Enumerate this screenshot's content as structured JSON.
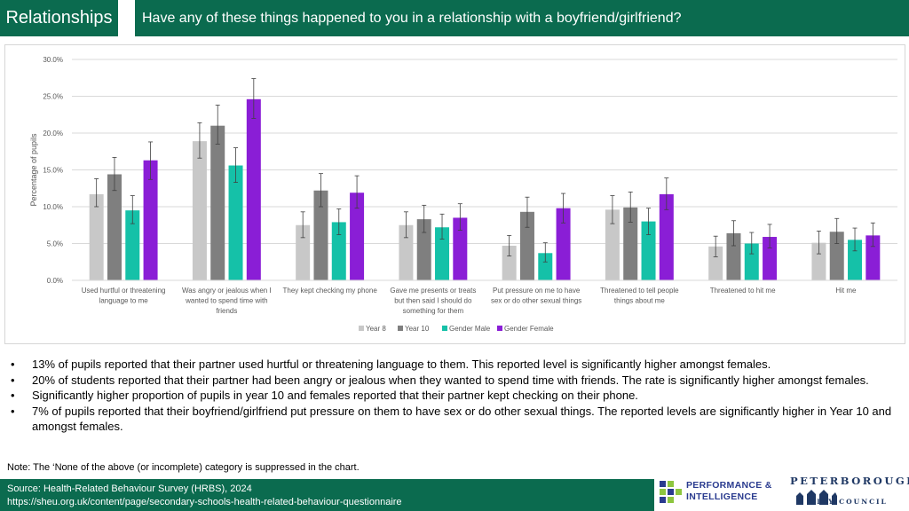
{
  "header": {
    "tag": "Relationships",
    "title": "Have any of these things happened to you in a relationship with a boyfriend/girlfriend?"
  },
  "colors": {
    "brand_green": "#0b6b4f",
    "year8": "#c8c8c8",
    "year10": "#7f7f7f",
    "male": "#15c1a8",
    "female": "#8a1ed6"
  },
  "chart_data": {
    "type": "bar",
    "ylabel": "Percentage of pupils",
    "ylim": [
      0,
      30
    ],
    "yticks": [
      "0.0%",
      "5.0%",
      "10.0%",
      "15.0%",
      "20.0%",
      "25.0%",
      "30.0%"
    ],
    "grid": true,
    "legend_position": "bottom",
    "error_bars": true,
    "categories": [
      [
        "Used hurtful or threatening",
        "language to me"
      ],
      [
        "Was angry or jealous when I",
        "wanted to spend time with",
        "friends"
      ],
      [
        "They kept checking my phone"
      ],
      [
        "Gave me presents or treats",
        "but then said I should do",
        "something for them"
      ],
      [
        "Put pressure on me to have",
        "sex or do other sexual things"
      ],
      [
        "Threatened to tell people",
        "things about me"
      ],
      [
        "Threatened to hit me"
      ],
      [
        "Hit me"
      ]
    ],
    "series": [
      {
        "name": "Year  8",
        "color": "#c8c8c8",
        "values": [
          11.7,
          18.9,
          7.5,
          7.5,
          4.7,
          9.6,
          4.6,
          5.1
        ],
        "err_low": [
          10.0,
          16.6,
          5.8,
          5.8,
          3.3,
          7.7,
          3.2,
          3.6
        ],
        "err_high": [
          13.8,
          21.4,
          9.3,
          9.3,
          6.1,
          11.5,
          6.0,
          6.7
        ]
      },
      {
        "name": "Year  10",
        "color": "#7f7f7f",
        "values": [
          14.4,
          21.0,
          12.2,
          8.3,
          9.3,
          9.9,
          6.4,
          6.6
        ],
        "err_low": [
          12.2,
          18.5,
          10.0,
          6.5,
          7.2,
          7.9,
          4.7,
          5.0
        ],
        "err_high": [
          16.7,
          23.8,
          14.5,
          10.2,
          11.3,
          12.0,
          8.1,
          8.4
        ]
      },
      {
        "name": "Gender Male",
        "color": "#15c1a8",
        "values": [
          9.5,
          15.6,
          7.9,
          7.2,
          3.7,
          8.0,
          5.0,
          5.5
        ],
        "err_low": [
          7.7,
          13.3,
          6.2,
          5.6,
          2.5,
          6.2,
          3.6,
          4.0
        ],
        "err_high": [
          11.5,
          18.0,
          9.7,
          9.0,
          5.1,
          9.8,
          6.5,
          7.1
        ]
      },
      {
        "name": "Gender Female",
        "color": "#8a1ed6",
        "values": [
          16.3,
          24.6,
          11.9,
          8.5,
          9.8,
          11.7,
          5.9,
          6.1
        ],
        "err_low": [
          13.7,
          22.0,
          9.8,
          6.8,
          7.8,
          9.6,
          4.4,
          4.6
        ],
        "err_high": [
          18.8,
          27.4,
          14.2,
          10.4,
          11.8,
          13.9,
          7.6,
          7.8
        ]
      }
    ]
  },
  "bullets": [
    "13% of pupils reported that their partner used hurtful or threatening language to them. This reported level is significantly higher amongst females.",
    "20% of students reported that their partner had been angry or jealous when they wanted to spend time with friends. The rate is significantly higher amongst females.",
    "Significantly higher proportion of pupils in year 10 and females reported that their partner kept checking on their phone.",
    "7% of pupils reported that their boyfriend/girlfriend put pressure on them to have sex or do other sexual things. The reported levels are significantly higher in Year 10 and amongst females."
  ],
  "bullet_symbol": "•",
  "note": "Note: The ‘None of the above (or incomplete) category is suppressed in the chart.",
  "footer": {
    "source": "Source: Health-Related Behaviour Survey (HRBS), 2024",
    "url": "https://sheu.org.uk/content/page/secondary-schools-health-related-behaviour-questionnaire"
  },
  "logos": {
    "pi_line1": "PERFORMANCE &",
    "pi_line2": "INTELLIGENCE",
    "pc_line1": "PETERBOROUGH",
    "pc_line2": "CITY COUNCIL"
  }
}
